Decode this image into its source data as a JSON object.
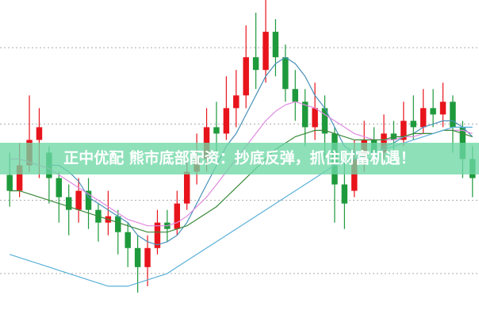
{
  "chart_data": {
    "type": "candlestick",
    "title": "正中优配 熊市底部配资：抄底反弹，抓住财富机遇！",
    "ylim": [
      0,
      100
    ],
    "grid": [
      85,
      61,
      37,
      14
    ],
    "up_color": "#e8141c",
    "down_color": "#1e9a3c",
    "candles": [
      [
        45,
        40,
        52,
        35
      ],
      [
        40,
        48,
        55,
        38
      ],
      [
        48,
        56,
        70,
        46
      ],
      [
        56,
        60,
        66,
        44
      ],
      [
        52,
        44,
        54,
        36
      ],
      [
        44,
        38,
        46,
        30
      ],
      [
        38,
        34,
        42,
        26
      ],
      [
        34,
        40,
        44,
        30
      ],
      [
        40,
        34,
        44,
        28
      ],
      [
        34,
        30,
        36,
        24
      ],
      [
        30,
        32,
        40,
        26
      ],
      [
        32,
        27,
        34,
        20
      ],
      [
        27,
        22,
        30,
        16
      ],
      [
        22,
        16,
        26,
        8
      ],
      [
        16,
        22,
        26,
        10
      ],
      [
        22,
        30,
        34,
        20
      ],
      [
        30,
        28,
        34,
        24
      ],
      [
        28,
        36,
        40,
        26
      ],
      [
        36,
        46,
        52,
        34
      ],
      [
        46,
        50,
        58,
        42
      ],
      [
        50,
        60,
        66,
        46
      ],
      [
        60,
        58,
        68,
        52
      ],
      [
        58,
        66,
        76,
        56
      ],
      [
        66,
        70,
        78,
        60
      ],
      [
        70,
        82,
        92,
        66
      ],
      [
        82,
        78,
        96,
        72
      ],
      [
        78,
        90,
        100,
        74
      ],
      [
        90,
        82,
        94,
        76
      ],
      [
        82,
        72,
        86,
        68
      ],
      [
        72,
        68,
        78,
        62
      ],
      [
        68,
        60,
        72,
        54
      ],
      [
        60,
        66,
        74,
        56
      ],
      [
        66,
        58,
        70,
        50
      ],
      [
        58,
        42,
        60,
        30
      ],
      [
        42,
        36,
        50,
        28
      ],
      [
        40,
        50,
        56,
        38
      ],
      [
        50,
        56,
        62,
        46
      ],
      [
        56,
        52,
        60,
        48
      ],
      [
        52,
        58,
        64,
        50
      ],
      [
        58,
        56,
        62,
        50
      ],
      [
        56,
        62,
        68,
        54
      ],
      [
        62,
        60,
        70,
        56
      ],
      [
        60,
        66,
        72,
        58
      ],
      [
        66,
        64,
        72,
        60
      ],
      [
        64,
        68,
        74,
        60
      ],
      [
        68,
        60,
        70,
        52
      ],
      [
        60,
        50,
        62,
        44
      ],
      [
        50,
        44,
        54,
        38
      ]
    ],
    "lines": [
      {
        "color": "#4a90b8",
        "values": [
          null,
          null,
          null,
          null,
          48,
          48,
          46,
          43,
          38,
          36,
          34,
          32,
          30,
          26,
          24,
          23,
          24,
          26,
          30,
          36,
          42,
          48,
          54,
          58,
          64,
          70,
          76,
          80,
          82,
          80,
          76,
          70,
          66,
          60,
          54,
          52,
          50,
          50,
          54,
          55,
          57,
          58,
          60,
          61,
          62,
          62,
          60,
          57
        ]
      },
      {
        "color": "#e08ae0",
        "values": [
          50,
          50,
          49,
          48,
          47,
          45,
          43,
          41,
          39,
          37,
          35,
          33,
          31,
          30,
          29,
          29,
          29,
          30,
          32,
          35,
          38,
          42,
          46,
          50,
          54,
          58,
          62,
          65,
          67,
          68,
          67,
          66,
          64,
          62,
          60,
          58,
          57,
          56,
          56,
          56,
          57,
          57,
          58,
          58,
          59,
          59,
          59,
          58
        ]
      },
      {
        "color": "#3a8a3a",
        "values": [
          40,
          40,
          39,
          38,
          37,
          36,
          35,
          34,
          33,
          32,
          31,
          30,
          29,
          28,
          27,
          27,
          27,
          28,
          29,
          31,
          33,
          35,
          38,
          41,
          44,
          47,
          50,
          53,
          55,
          57,
          58,
          59,
          59,
          58,
          57,
          56,
          56,
          56,
          56,
          57,
          57,
          58,
          58,
          58,
          59,
          59,
          58,
          57
        ]
      },
      {
        "color": "#5ab0d8",
        "values": [
          20,
          19,
          18,
          17,
          16,
          15,
          14,
          13,
          12,
          11,
          10,
          10,
          10,
          11,
          12,
          13,
          14,
          16,
          18,
          20,
          22,
          24,
          26,
          28,
          30,
          32,
          34,
          36,
          38,
          40,
          42,
          44,
          46,
          48,
          49,
          50,
          51,
          52,
          53,
          54,
          55,
          56,
          57,
          58,
          59,
          60,
          60,
          60
        ]
      }
    ]
  }
}
